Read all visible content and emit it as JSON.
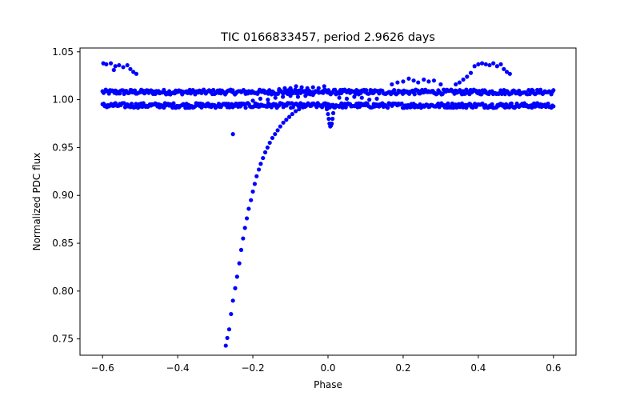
{
  "chart_data": {
    "type": "scatter",
    "title": "TIC 0166833457, period 2.9626 days",
    "xlabel": "Phase",
    "ylabel": "Normalized PDC flux",
    "xlim": [
      -0.66,
      0.66
    ],
    "ylim": [
      0.733,
      1.054
    ],
    "xticks": [
      -0.6,
      -0.4,
      -0.2,
      0.0,
      0.2,
      0.4,
      0.6
    ],
    "xtick_labels": [
      "−0.6",
      "−0.4",
      "−0.2",
      "0.0",
      "0.2",
      "0.4",
      "0.6"
    ],
    "yticks": [
      0.75,
      0.8,
      0.85,
      0.9,
      0.95,
      1.0,
      1.05
    ],
    "ytick_labels": [
      "0.75",
      "0.80",
      "0.85",
      "0.90",
      "0.95",
      "1.00",
      "1.05"
    ],
    "grid": false,
    "marker_color": "#0000ff",
    "series": [
      {
        "bands": [
          {
            "level": 1.008,
            "x_range": [
              -0.6,
              0.6
            ]
          },
          {
            "level": 0.994,
            "x_range": [
              -0.6,
              0.6
            ]
          }
        ],
        "ingress_points": [
          {
            "x": -0.272,
            "y": 0.743
          },
          {
            "x": -0.268,
            "y": 0.751
          },
          {
            "x": -0.263,
            "y": 0.76
          },
          {
            "x": -0.258,
            "y": 0.776
          },
          {
            "x": -0.253,
            "y": 0.79
          },
          {
            "x": -0.247,
            "y": 0.803
          },
          {
            "x": -0.242,
            "y": 0.815
          },
          {
            "x": -0.236,
            "y": 0.829
          },
          {
            "x": -0.231,
            "y": 0.843
          },
          {
            "x": -0.226,
            "y": 0.855
          },
          {
            "x": -0.221,
            "y": 0.866
          },
          {
            "x": -0.216,
            "y": 0.876
          },
          {
            "x": -0.211,
            "y": 0.886
          },
          {
            "x": -0.205,
            "y": 0.895
          },
          {
            "x": -0.2,
            "y": 0.904
          },
          {
            "x": -0.195,
            "y": 0.912
          },
          {
            "x": -0.19,
            "y": 0.92
          },
          {
            "x": -0.184,
            "y": 0.927
          },
          {
            "x": -0.179,
            "y": 0.933
          },
          {
            "x": -0.173,
            "y": 0.939
          },
          {
            "x": -0.167,
            "y": 0.945
          },
          {
            "x": -0.161,
            "y": 0.95
          },
          {
            "x": -0.155,
            "y": 0.955
          },
          {
            "x": -0.148,
            "y": 0.96
          },
          {
            "x": -0.141,
            "y": 0.964
          },
          {
            "x": -0.134,
            "y": 0.968
          },
          {
            "x": -0.127,
            "y": 0.972
          },
          {
            "x": -0.119,
            "y": 0.976
          },
          {
            "x": -0.111,
            "y": 0.979
          },
          {
            "x": -0.103,
            "y": 0.982
          },
          {
            "x": -0.095,
            "y": 0.985
          },
          {
            "x": -0.086,
            "y": 0.988
          },
          {
            "x": -0.077,
            "y": 0.99
          },
          {
            "x": -0.067,
            "y": 0.992
          },
          {
            "x": -0.057,
            "y": 0.994
          }
        ],
        "outlier_points": [
          {
            "x": -0.253,
            "y": 0.964
          }
        ],
        "dip_points": [
          {
            "x": -0.006,
            "y": 0.996
          },
          {
            "x": -0.003,
            "y": 0.99
          },
          {
            "x": 0.0,
            "y": 0.985
          },
          {
            "x": 0.002,
            "y": 0.98
          },
          {
            "x": 0.004,
            "y": 0.975
          },
          {
            "x": 0.006,
            "y": 0.972
          },
          {
            "x": 0.008,
            "y": 0.973
          },
          {
            "x": 0.01,
            "y": 0.975
          },
          {
            "x": 0.012,
            "y": 0.98
          },
          {
            "x": 0.014,
            "y": 0.986
          },
          {
            "x": 0.016,
            "y": 0.992
          }
        ],
        "upper_left_points": [
          {
            "x": -0.598,
            "y": 1.038
          },
          {
            "x": -0.59,
            "y": 1.037
          },
          {
            "x": -0.578,
            "y": 1.038
          },
          {
            "x": -0.566,
            "y": 1.035
          },
          {
            "x": -0.556,
            "y": 1.036
          },
          {
            "x": -0.545,
            "y": 1.034
          },
          {
            "x": -0.534,
            "y": 1.036
          },
          {
            "x": -0.526,
            "y": 1.032
          },
          {
            "x": -0.518,
            "y": 1.029
          },
          {
            "x": -0.51,
            "y": 1.027
          },
          {
            "x": -0.57,
            "y": 1.031
          }
        ],
        "upper_right_points": [
          {
            "x": 0.36,
            "y": 1.021
          },
          {
            "x": 0.37,
            "y": 1.024
          },
          {
            "x": 0.38,
            "y": 1.028
          },
          {
            "x": 0.39,
            "y": 1.035
          },
          {
            "x": 0.4,
            "y": 1.037
          },
          {
            "x": 0.41,
            "y": 1.038
          },
          {
            "x": 0.42,
            "y": 1.037
          },
          {
            "x": 0.43,
            "y": 1.036
          },
          {
            "x": 0.44,
            "y": 1.038
          },
          {
            "x": 0.45,
            "y": 1.035
          },
          {
            "x": 0.46,
            "y": 1.037
          },
          {
            "x": 0.468,
            "y": 1.032
          },
          {
            "x": 0.476,
            "y": 1.029
          },
          {
            "x": 0.484,
            "y": 1.027
          }
        ],
        "hump_points": [
          {
            "x": 0.17,
            "y": 1.016
          },
          {
            "x": 0.185,
            "y": 1.018
          },
          {
            "x": 0.2,
            "y": 1.019
          },
          {
            "x": 0.215,
            "y": 1.022
          },
          {
            "x": 0.228,
            "y": 1.02
          },
          {
            "x": 0.24,
            "y": 1.018
          },
          {
            "x": 0.255,
            "y": 1.021
          },
          {
            "x": 0.268,
            "y": 1.019
          },
          {
            "x": 0.282,
            "y": 1.02
          },
          {
            "x": 0.3,
            "y": 1.016
          },
          {
            "x": 0.34,
            "y": 1.016
          },
          {
            "x": 0.35,
            "y": 1.018
          }
        ],
        "mid_upper_points": [
          {
            "x": -0.1,
            "y": 1.012
          },
          {
            "x": -0.085,
            "y": 1.014
          },
          {
            "x": -0.07,
            "y": 1.013
          },
          {
            "x": -0.055,
            "y": 1.012
          },
          {
            "x": -0.04,
            "y": 1.013
          },
          {
            "x": -0.025,
            "y": 1.012
          },
          {
            "x": -0.01,
            "y": 1.014
          },
          {
            "x": -0.13,
            "y": 1.011
          },
          {
            "x": -0.115,
            "y": 1.012
          }
        ],
        "mid_lower_points": [
          {
            "x": -0.2,
            "y": 0.999
          },
          {
            "x": -0.18,
            "y": 1.001
          },
          {
            "x": -0.16,
            "y": 1.0
          },
          {
            "x": -0.14,
            "y": 1.002
          },
          {
            "x": -0.12,
            "y": 1.003
          },
          {
            "x": -0.1,
            "y": 1.004
          },
          {
            "x": -0.08,
            "y": 1.003
          },
          {
            "x": -0.06,
            "y": 1.004
          },
          {
            "x": -0.04,
            "y": 1.005
          },
          {
            "x": 0.03,
            "y": 1.002
          },
          {
            "x": 0.05,
            "y": 1.001
          },
          {
            "x": 0.07,
            "y": 1.003
          },
          {
            "x": 0.09,
            "y": 1.002
          },
          {
            "x": 0.11,
            "y": 1.0
          },
          {
            "x": 0.13,
            "y": 1.001
          }
        ]
      }
    ]
  }
}
